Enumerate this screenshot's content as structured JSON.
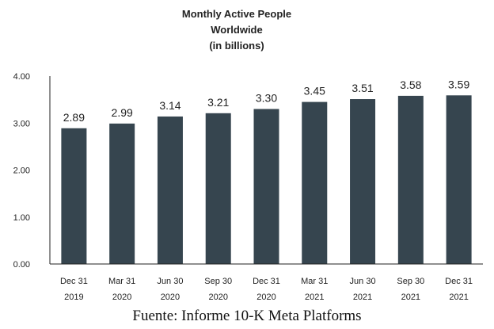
{
  "chart_data": {
    "type": "bar",
    "title_lines": [
      "Monthly Active People",
      "Worldwide",
      "(in billions)"
    ],
    "categories": [
      [
        "Dec 31",
        "2019"
      ],
      [
        "Mar 31",
        "2020"
      ],
      [
        "Jun 30",
        "2020"
      ],
      [
        "Sep 30",
        "2020"
      ],
      [
        "Dec 31",
        "2020"
      ],
      [
        "Mar 31",
        "2021"
      ],
      [
        "Jun 30",
        "2021"
      ],
      [
        "Sep 30",
        "2021"
      ],
      [
        "Dec 31",
        "2021"
      ]
    ],
    "values": [
      2.89,
      2.99,
      3.14,
      3.21,
      3.3,
      3.45,
      3.51,
      3.58,
      3.59
    ],
    "value_labels": [
      "2.89",
      "2.99",
      "3.14",
      "3.21",
      "3.30",
      "3.45",
      "3.51",
      "3.58",
      "3.59"
    ],
    "y_ticks": [
      "0.00",
      "1.00",
      "2.00",
      "3.00",
      "4.00"
    ],
    "ylim": [
      0,
      4
    ],
    "grid": false,
    "bar_color": "#36454f",
    "axis_color": "#222222"
  },
  "source_note": "Fuente: Informe 10-K Meta Platforms"
}
